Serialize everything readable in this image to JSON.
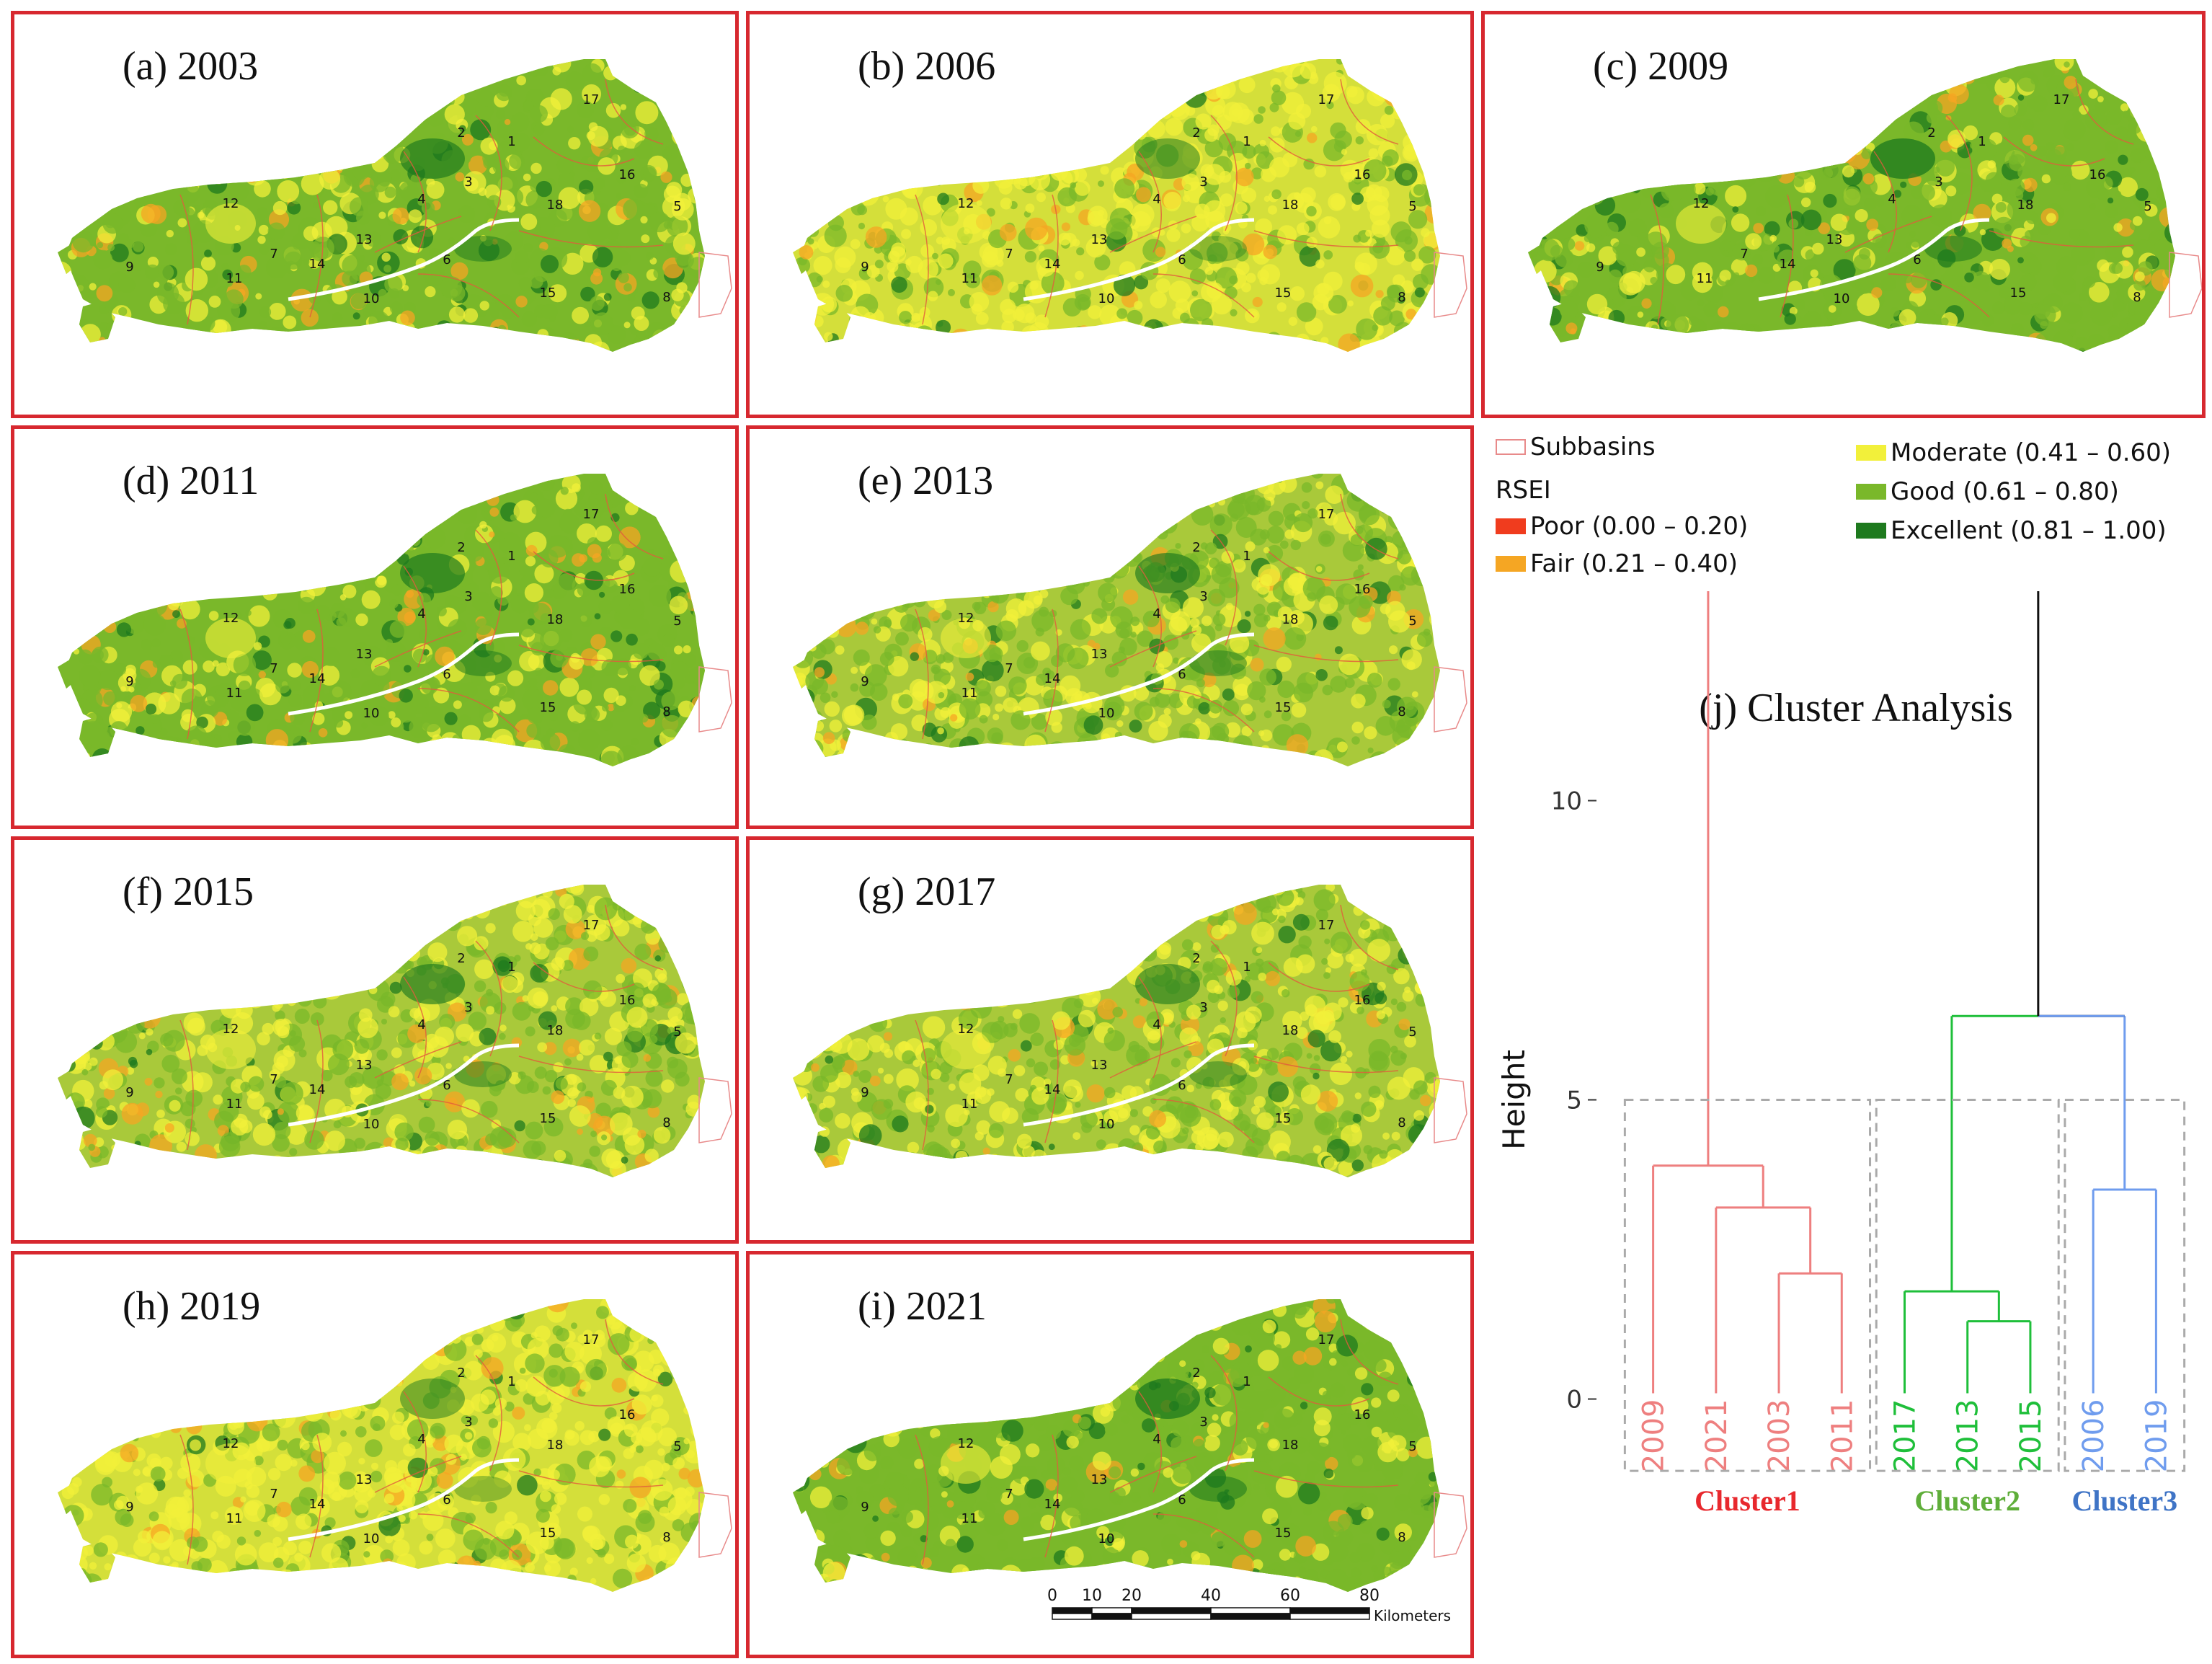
{
  "panels": [
    {
      "id": "a",
      "title": "(a) 2003",
      "year": "2003",
      "border": "#d7282f",
      "greenness": 0.55,
      "yellowness": 0.35
    },
    {
      "id": "b",
      "title": "(b) 2006",
      "year": "2006",
      "border": "#2b67b8",
      "greenness": 0.25,
      "yellowness": 0.65
    },
    {
      "id": "c",
      "title": "(c) 2009",
      "year": "2009",
      "border": "#d7282f",
      "greenness": 0.75,
      "yellowness": 0.2
    },
    {
      "id": "d",
      "title": "(d) 2011",
      "year": "2011",
      "border": "#d7282f",
      "greenness": 0.6,
      "yellowness": 0.3
    },
    {
      "id": "e",
      "title": "(e) 2013",
      "year": "2013",
      "border": "#2ea44f",
      "greenness": 0.5,
      "yellowness": 0.45
    },
    {
      "id": "f",
      "title": "(f) 2015",
      "year": "2015",
      "border": "#2ea44f",
      "greenness": 0.5,
      "yellowness": 0.45
    },
    {
      "id": "g",
      "title": "(g) 2017",
      "year": "2017",
      "border": "#2ea44f",
      "greenness": 0.45,
      "yellowness": 0.5
    },
    {
      "id": "h",
      "title": "(h) 2019",
      "year": "2019",
      "border": "#2b67b8",
      "greenness": 0.2,
      "yellowness": 0.7
    },
    {
      "id": "i",
      "title": "(i) 2021",
      "year": "2021",
      "border": "#d7282f",
      "greenness": 0.7,
      "yellowness": 0.25
    }
  ],
  "subbasin_labels": [
    "1",
    "2",
    "3",
    "4",
    "5",
    "6",
    "7",
    "8",
    "9",
    "10",
    "11",
    "12",
    "13",
    "14",
    "15",
    "16",
    "17",
    "18"
  ],
  "legend": {
    "subbasins": "Subbasins",
    "rsei_title": "RSEI",
    "classes": [
      {
        "label": "Poor (0.00 – 0.20)",
        "color": "#f03c1e"
      },
      {
        "label": "Fair (0.21 – 0.40)",
        "color": "#f5a623"
      },
      {
        "label": "Moderate (0.41 – 0.60)",
        "color": "#f2f03a"
      },
      {
        "label": "Good (0.61 – 0.80)",
        "color": "#7ab82a"
      },
      {
        "label": "Excellent (0.81 – 1.00)",
        "color": "#1e7a1e"
      }
    ]
  },
  "scale_bar": {
    "ticks": [
      "0",
      "10",
      "20",
      "40",
      "60",
      "80"
    ],
    "tick_values": [
      0,
      10,
      20,
      40,
      60,
      80
    ],
    "unit": "Kilometers"
  },
  "dendrogram": {
    "title": "(j) Cluster Analysis",
    "ylabel": "Height",
    "yticks": [
      0,
      5,
      10
    ],
    "ylim": [
      -1.5,
      13.5
    ],
    "leaves": [
      {
        "label": "2009",
        "color": "#ee7f7f"
      },
      {
        "label": "2021",
        "color": "#ee7f7f"
      },
      {
        "label": "2003",
        "color": "#ee7f7f"
      },
      {
        "label": "2011",
        "color": "#ee7f7f"
      },
      {
        "label": "2017",
        "color": "#1fbf3a"
      },
      {
        "label": "2013",
        "color": "#1fbf3a"
      },
      {
        "label": "2015",
        "color": "#1fbf3a"
      },
      {
        "label": "2006",
        "color": "#6f9cee"
      },
      {
        "label": "2019",
        "color": "#6f9cee"
      }
    ],
    "merges": [
      {
        "a": 3,
        "b": 4,
        "h": 2.1,
        "color": "#ee7f7f"
      },
      {
        "a": 2,
        "b": "m0",
        "h": 3.2,
        "color": "#ee7f7f"
      },
      {
        "a": 1,
        "b": "m1",
        "h": 3.9,
        "color": "#ee7f7f"
      },
      {
        "a": 6,
        "b": 7,
        "h": 1.3,
        "color": "#1fbf3a"
      },
      {
        "a": 5,
        "b": "m3",
        "h": 1.8,
        "color": "#1fbf3a"
      },
      {
        "a": 8,
        "b": 9,
        "h": 3.5,
        "color": "#6f9cee"
      },
      {
        "a": "m4",
        "b": "m5",
        "h": 6.4,
        "color": "mixed"
      },
      {
        "a": "m2",
        "b": "m6",
        "h": 13.6,
        "color": "mixed"
      }
    ],
    "clusters": [
      {
        "name": "Cluster1",
        "color": "#e8282d",
        "first": 1,
        "last": 4
      },
      {
        "name": "Cluster2",
        "color": "#5fae3a",
        "first": 5,
        "last": 7
      },
      {
        "name": "Cluster3",
        "color": "#3f74c6",
        "first": 8,
        "last": 9
      }
    ],
    "cut_height": 5
  }
}
